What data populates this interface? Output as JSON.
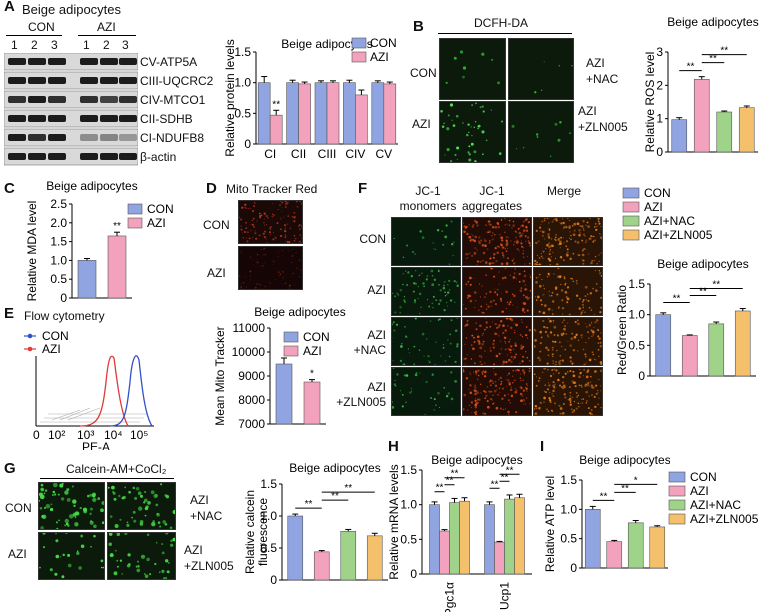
{
  "colors": {
    "con": "#8fa4e0",
    "azi": "#f2a2bc",
    "nac": "#9fd38a",
    "zln": "#f5c06c",
    "blot_bg": "#d9d9d9",
    "band": "#1c1c1c",
    "micro_green_bg": "#0b1a0b",
    "micro_red_bg": "#1a0906",
    "flow_con": "#3550c9",
    "flow_azi": "#e03a3a"
  },
  "icons": [
    "significance-star-icon"
  ],
  "panels": {
    "A": {
      "letter": "A",
      "title": "Beige adipocytes",
      "groups": [
        "CON",
        "AZI"
      ],
      "lanes": [
        "1",
        "2",
        "3",
        "1",
        "2",
        "3"
      ],
      "bands": [
        "CV-ATP5A",
        "CIII-UQCRC2",
        "CIV-MTCO1",
        "CII-SDHB",
        "CI-NDUFB8",
        "β-actin"
      ]
    },
    "B": {
      "letter": "B",
      "stain": "DCFH-DA",
      "row_labels": [
        "CON",
        "AZI"
      ],
      "treat_labels": [
        "AZI\n+NAC",
        "AZI\n+ZLN005"
      ]
    },
    "C": {
      "letter": "C"
    },
    "D": {
      "letter": "D",
      "stain": "Mito Tracker Red",
      "row_labels": [
        "CON",
        "AZI"
      ]
    },
    "E": {
      "letter": "E",
      "title": "Flow cytometry",
      "legend": [
        "CON",
        "AZI"
      ],
      "xlabel": "PE-A",
      "ticks": [
        "0",
        "10²",
        "10³",
        "10⁴",
        "10⁵"
      ]
    },
    "F": {
      "letter": "F",
      "columns": [
        "JC-1\nmonomers",
        "JC-1\naggregates",
        "Merge"
      ],
      "row_labels": [
        "CON",
        "AZI",
        "AZI\n+NAC",
        "AZI\n+ZLN005"
      ],
      "legend": [
        "CON",
        "AZI",
        "AZI+NAC",
        "AZI+ZLN005"
      ]
    },
    "G": {
      "letter": "G",
      "stain": "Calcein-AM+CoCl₂",
      "row_labels": [
        "CON",
        "AZI"
      ],
      "treat_labels": [
        "AZI\n+NAC",
        "AZI\n+ZLN005"
      ]
    },
    "H": {
      "letter": "H"
    },
    "I": {
      "letter": "I",
      "legend": [
        "CON",
        "AZI",
        "AZI+NAC",
        "AZI+ZLN005"
      ]
    }
  },
  "chart_data": [
    {
      "id": "A-protein",
      "type": "bar",
      "title": "Beige adipocytes",
      "ylabel": "Relative protein levels",
      "categories": [
        "CI",
        "CII",
        "CIII",
        "CIV",
        "CV"
      ],
      "ylim": [
        0,
        1.5
      ],
      "yticks": [
        "0",
        "0.5",
        "1.0",
        "1.5"
      ],
      "series": [
        {
          "name": "CON",
          "values": [
            1.0,
            1.0,
            1.0,
            1.0,
            1.0
          ],
          "errors": [
            0.1,
            0.04,
            0.03,
            0.04,
            0.03
          ]
        },
        {
          "name": "AZI",
          "values": [
            0.47,
            0.98,
            1.0,
            0.8,
            0.98
          ],
          "errors": [
            0.08,
            0.03,
            0.03,
            0.08,
            0.03
          ]
        }
      ],
      "annotations": [
        {
          "text": "**",
          "category": "CI"
        }
      ]
    },
    {
      "id": "B-ros",
      "type": "bar",
      "title": "Beige adipocytes",
      "ylabel": "Relative ROS level",
      "categories": [
        "CON",
        "AZI",
        "AZI+NAC",
        "AZI+ZLN005"
      ],
      "ylim": [
        0,
        3
      ],
      "yticks": [
        "0",
        "1",
        "2",
        "3"
      ],
      "values": [
        0.97,
        2.18,
        1.2,
        1.33
      ],
      "errors": [
        0.06,
        0.08,
        0.03,
        0.05
      ],
      "significance": [
        {
          "a": 0,
          "b": 1,
          "text": "**"
        },
        {
          "a": 1,
          "b": 2,
          "text": "**"
        },
        {
          "a": 1,
          "b": 3,
          "text": "**"
        }
      ]
    },
    {
      "id": "C-mda",
      "type": "bar",
      "title": "Beige adipocytes",
      "ylabel": "Relative MDA level",
      "categories": [
        "CON",
        "AZI"
      ],
      "ylim": [
        0,
        2.5
      ],
      "yticks": [
        "0",
        "0.5",
        "1.0",
        "1.5",
        "2.0",
        "2.5"
      ],
      "values": [
        1.0,
        1.65
      ],
      "errors": [
        0.05,
        0.1
      ],
      "legend": [
        "CON",
        "AZI"
      ],
      "annotations": [
        {
          "text": "**",
          "category": "AZI"
        }
      ]
    },
    {
      "id": "D-mito",
      "type": "bar",
      "title": "Beige adipocytes",
      "ylabel": "Mean Mito Tracker",
      "categories": [
        "CON",
        "AZI"
      ],
      "ylim": [
        7000,
        11000
      ],
      "yticks": [
        "7000",
        "8000",
        "9000",
        "10000",
        "11000"
      ],
      "values": [
        9500,
        8750
      ],
      "errors": [
        250,
        100
      ],
      "legend": [
        "CON",
        "AZI"
      ],
      "annotations": [
        {
          "text": "*",
          "category": "AZI"
        }
      ]
    },
    {
      "id": "F-jc1",
      "type": "bar",
      "title": "Beige adipocytes",
      "ylabel": "Red/Green Ratio",
      "categories": [
        "CON",
        "AZI",
        "AZI+NAC",
        "AZI+ZLN005"
      ],
      "ylim": [
        0,
        1.5
      ],
      "yticks": [
        "0",
        "0.5",
        "1.0",
        "1.5"
      ],
      "values": [
        1.0,
        0.66,
        0.85,
        1.06
      ],
      "errors": [
        0.03,
        0.01,
        0.03,
        0.04
      ],
      "significance": [
        {
          "a": 0,
          "b": 1,
          "text": "**"
        },
        {
          "a": 1,
          "b": 2,
          "text": "**"
        },
        {
          "a": 1,
          "b": 3,
          "text": "**"
        }
      ]
    },
    {
      "id": "G-calcein",
      "type": "bar",
      "title": "Beige adipocytes",
      "ylabel": "Relative calcein\nfluorescence",
      "categories": [
        "CON",
        "AZI",
        "AZI+NAC",
        "AZI+ZLN005"
      ],
      "ylim": [
        0,
        1.5
      ],
      "yticks": [
        "0",
        "0.5",
        "1.0",
        "1.5"
      ],
      "values": [
        1.0,
        0.44,
        0.76,
        0.69
      ],
      "errors": [
        0.03,
        0.02,
        0.03,
        0.04
      ],
      "significance": [
        {
          "a": 0,
          "b": 1,
          "text": "**"
        },
        {
          "a": 1,
          "b": 2,
          "text": "**"
        },
        {
          "a": 1,
          "b": 3,
          "text": "**"
        }
      ]
    },
    {
      "id": "H-mrna",
      "type": "bar",
      "title": "Beige adipocytes",
      "ylabel": "Relative mRNA levels",
      "categories": [
        "Pgc1α",
        "Ucp1"
      ],
      "ylim": [
        0,
        1.5
      ],
      "yticks": [
        "0",
        "0.5",
        "1.0",
        "1.5"
      ],
      "series": [
        {
          "name": "CON",
          "values": [
            1.0,
            1.0
          ],
          "errors": [
            0.04,
            0.04
          ]
        },
        {
          "name": "AZI",
          "values": [
            0.62,
            0.46
          ],
          "errors": [
            0.02,
            0.01
          ]
        },
        {
          "name": "AZI+NAC",
          "values": [
            1.03,
            1.08
          ],
          "errors": [
            0.06,
            0.06
          ]
        },
        {
          "name": "AZI+ZLN005",
          "values": [
            1.05,
            1.1
          ],
          "errors": [
            0.05,
            0.05
          ]
        }
      ],
      "significance": [
        {
          "cat": 0,
          "a": 0,
          "b": 1,
          "text": "**"
        },
        {
          "cat": 0,
          "a": 1,
          "b": 2,
          "text": "**"
        },
        {
          "cat": 0,
          "a": 1,
          "b": 3,
          "text": "**"
        },
        {
          "cat": 1,
          "a": 0,
          "b": 1,
          "text": "**"
        },
        {
          "cat": 1,
          "a": 1,
          "b": 2,
          "text": "**"
        },
        {
          "cat": 1,
          "a": 1,
          "b": 3,
          "text": "**"
        }
      ]
    },
    {
      "id": "I-atp",
      "type": "bar",
      "title": "Beige adipocytes",
      "ylabel": "Relative ATP level",
      "categories": [
        "CON",
        "AZI",
        "AZI+NAC",
        "AZI+ZLN005"
      ],
      "ylim": [
        0,
        1.5
      ],
      "yticks": [
        "0",
        "0.5",
        "1.0",
        "1.5"
      ],
      "values": [
        1.0,
        0.45,
        0.77,
        0.7
      ],
      "errors": [
        0.05,
        0.02,
        0.04,
        0.02
      ],
      "significance": [
        {
          "a": 0,
          "b": 1,
          "text": "**"
        },
        {
          "a": 1,
          "b": 2,
          "text": "**"
        },
        {
          "a": 1,
          "b": 3,
          "text": "*"
        }
      ]
    }
  ]
}
